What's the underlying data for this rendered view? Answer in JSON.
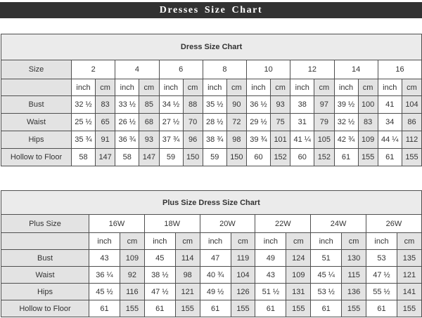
{
  "header": {
    "title": "Dresses Size Chart",
    "bar_color": "#323232",
    "text_color": "#ffffff"
  },
  "colors": {
    "shaded_cell": "#e3e3e3",
    "title_row": "#ebebeb",
    "border": "#4f4f4f",
    "table_text": "#333333"
  },
  "chart_data": [
    {
      "type": "table",
      "title": "Dress Size Chart",
      "corner_label": "Size",
      "unit_row_labels": [
        "inch",
        "cm"
      ],
      "columns": [
        "2",
        "4",
        "6",
        "8",
        "10",
        "12",
        "14",
        "16"
      ],
      "rows": [
        {
          "label": "Bust",
          "values": [
            [
              "32 ½",
              "83"
            ],
            [
              "33 ½",
              "85"
            ],
            [
              "34 ½",
              "88"
            ],
            [
              "35 ½",
              "90"
            ],
            [
              "36 ½",
              "93"
            ],
            [
              "38",
              "97"
            ],
            [
              "39 ½",
              "100"
            ],
            [
              "41",
              "104"
            ]
          ]
        },
        {
          "label": "Waist",
          "values": [
            [
              "25 ½",
              "65"
            ],
            [
              "26 ½",
              "68"
            ],
            [
              "27 ½",
              "70"
            ],
            [
              "28 ½",
              "72"
            ],
            [
              "29 ½",
              "75"
            ],
            [
              "31",
              "79"
            ],
            [
              "32 ½",
              "83"
            ],
            [
              "34",
              "86"
            ]
          ]
        },
        {
          "label": "Hips",
          "values": [
            [
              "35 ¾",
              "91"
            ],
            [
              "36 ¾",
              "93"
            ],
            [
              "37 ¾",
              "96"
            ],
            [
              "38 ¾",
              "98"
            ],
            [
              "39 ¾",
              "101"
            ],
            [
              "41 ¼",
              "105"
            ],
            [
              "42 ¾",
              "109"
            ],
            [
              "44 ¼",
              "112"
            ]
          ]
        },
        {
          "label": "Hollow to Floor",
          "values": [
            [
              "58",
              "147"
            ],
            [
              "58",
              "147"
            ],
            [
              "59",
              "150"
            ],
            [
              "59",
              "150"
            ],
            [
              "60",
              "152"
            ],
            [
              "60",
              "152"
            ],
            [
              "61",
              "155"
            ],
            [
              "61",
              "155"
            ]
          ]
        }
      ]
    },
    {
      "type": "table",
      "title": "Plus Size Dress Size Chart",
      "corner_label": "Plus Size",
      "unit_row_labels": [
        "inch",
        "cm"
      ],
      "columns": [
        "16W",
        "18W",
        "20W",
        "22W",
        "24W",
        "26W"
      ],
      "rows": [
        {
          "label": "Bust",
          "values": [
            [
              "43",
              "109"
            ],
            [
              "45",
              "114"
            ],
            [
              "47",
              "119"
            ],
            [
              "49",
              "124"
            ],
            [
              "51",
              "130"
            ],
            [
              "53",
              "135"
            ]
          ]
        },
        {
          "label": "Waist",
          "values": [
            [
              "36 ¼",
              "92"
            ],
            [
              "38 ½",
              "98"
            ],
            [
              "40 ¾",
              "104"
            ],
            [
              "43",
              "109"
            ],
            [
              "45 ¼",
              "115"
            ],
            [
              "47 ½",
              "121"
            ]
          ]
        },
        {
          "label": "Hips",
          "values": [
            [
              "45 ½",
              "116"
            ],
            [
              "47 ½",
              "121"
            ],
            [
              "49 ½",
              "126"
            ],
            [
              "51 ½",
              "131"
            ],
            [
              "53 ½",
              "136"
            ],
            [
              "55 ½",
              "141"
            ]
          ]
        },
        {
          "label": "Hollow to Floor",
          "values": [
            [
              "61",
              "155"
            ],
            [
              "61",
              "155"
            ],
            [
              "61",
              "155"
            ],
            [
              "61",
              "155"
            ],
            [
              "61",
              "155"
            ],
            [
              "61",
              "155"
            ]
          ]
        }
      ]
    }
  ]
}
